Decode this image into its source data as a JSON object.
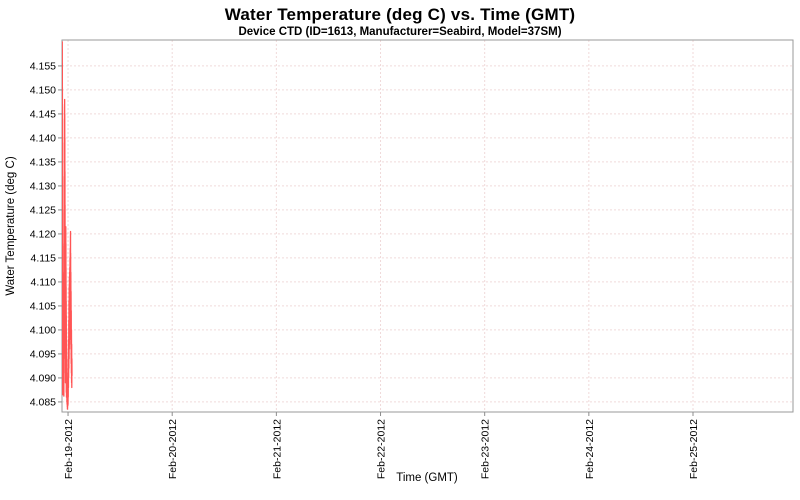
{
  "page": {
    "background": "#ffffff"
  },
  "chart_data": {
    "type": "line",
    "title": "Water Temperature (deg C) vs. Time (GMT)",
    "subtitle": "Device CTD (ID=1613, Manufacturer=Seabird, Model=37SM)",
    "xlabel": "Time (GMT)",
    "ylabel": "Water Temperature (deg C)",
    "x_tick_labels": [
      "Feb-19-2012",
      "Feb-20-2012",
      "Feb-21-2012",
      "Feb-22-2012",
      "Feb-23-2012",
      "Feb-24-2012",
      "Feb-25-2012"
    ],
    "x_tick_days": [
      0,
      1,
      2,
      3,
      4,
      5,
      6
    ],
    "x_range_days": [
      -0.058,
      6.96
    ],
    "y_ticks": [
      4.085,
      4.09,
      4.095,
      4.1,
      4.105,
      4.11,
      4.115,
      4.12,
      4.125,
      4.13,
      4.135,
      4.14,
      4.145,
      4.15,
      4.155
    ],
    "y_range": [
      4.0829,
      4.1604
    ],
    "grid": true,
    "legend": "none",
    "colors": {
      "series": "#ff5555",
      "grid": "#f0dada",
      "border": "#9a9a9a",
      "tick": "#8c8c8c",
      "text": "#000000"
    },
    "series": [
      {
        "color": "#ff5555",
        "points": [
          [
            -0.0556,
            4.091
          ],
          [
            -0.0554,
            4.16
          ],
          [
            -0.0552,
            4.095
          ],
          [
            -0.055,
            4.1585
          ],
          [
            -0.0548,
            4.1
          ],
          [
            -0.0546,
            4.1555
          ],
          [
            -0.0544,
            4.093
          ],
          [
            -0.0542,
            4.1505
          ],
          [
            -0.054,
            4.097
          ],
          [
            -0.0538,
            4.1465
          ],
          [
            -0.0536,
            4.089
          ],
          [
            -0.0534,
            4.14
          ],
          [
            -0.0532,
            4.094
          ],
          [
            -0.053,
            4.132
          ],
          [
            -0.0528,
            4.088
          ],
          [
            -0.0526,
            4.1245
          ],
          [
            -0.0524,
            4.092
          ],
          [
            -0.0522,
            4.1175
          ],
          [
            -0.052,
            4.087
          ],
          [
            -0.0518,
            4.1115
          ],
          [
            -0.0516,
            4.09
          ],
          [
            -0.0514,
            4.1065
          ],
          [
            -0.0511,
            4.0865
          ],
          [
            -0.0506,
            4.104
          ],
          [
            -0.0501,
            4.0885
          ],
          [
            -0.0496,
            4.107
          ],
          [
            -0.0491,
            4.0905
          ],
          [
            -0.0486,
            4.109
          ],
          [
            -0.0481,
            4.0875
          ],
          [
            -0.0476,
            4.105
          ],
          [
            -0.0471,
            4.0915
          ],
          [
            -0.0466,
            4.1095
          ],
          [
            -0.0461,
            4.0885
          ],
          [
            -0.0456,
            4.103
          ],
          [
            -0.0451,
            4.087
          ],
          [
            -0.0446,
            4.108
          ],
          [
            -0.0441,
            4.0895
          ],
          [
            -0.0436,
            4.105
          ],
          [
            -0.0431,
            4.0878
          ],
          [
            -0.0426,
            4.101
          ],
          [
            -0.0421,
            4.0905
          ],
          [
            -0.0416,
            4.107
          ],
          [
            -0.0411,
            4.0888
          ],
          [
            -0.0406,
            4.104
          ],
          [
            -0.0401,
            4.0862
          ],
          [
            -0.0396,
            4.112
          ],
          [
            -0.0391,
            4.095
          ],
          [
            -0.0386,
            4.118
          ],
          [
            -0.0381,
            4.099
          ],
          [
            -0.0376,
            4.125
          ],
          [
            -0.0371,
            4.103
          ],
          [
            -0.0366,
            4.132
          ],
          [
            -0.0361,
            4.107
          ],
          [
            -0.0356,
            4.139
          ],
          [
            -0.0351,
            4.11
          ],
          [
            -0.0346,
            4.144
          ],
          [
            -0.0341,
            4.113
          ],
          [
            -0.0336,
            4.147
          ],
          [
            -0.0331,
            4.115
          ],
          [
            -0.0326,
            4.148
          ],
          [
            -0.0321,
            4.112
          ],
          [
            -0.0316,
            4.145
          ],
          [
            -0.0311,
            4.108
          ],
          [
            -0.0306,
            4.14
          ],
          [
            -0.0301,
            4.104
          ],
          [
            -0.0296,
            4.133
          ],
          [
            -0.0291,
            4.1
          ],
          [
            -0.0286,
            4.126
          ],
          [
            -0.0281,
            4.097
          ],
          [
            -0.0276,
            4.119
          ],
          [
            -0.0271,
            4.094
          ],
          [
            -0.0266,
            4.113
          ],
          [
            -0.0261,
            4.091
          ],
          [
            -0.0256,
            4.108
          ],
          [
            -0.0251,
            4.089
          ],
          [
            -0.0246,
            4.112
          ],
          [
            -0.0241,
            4.093
          ],
          [
            -0.0236,
            4.116
          ],
          [
            -0.0231,
            4.096
          ],
          [
            -0.0226,
            4.119
          ],
          [
            -0.0221,
            4.098
          ],
          [
            -0.0216,
            4.1215
          ],
          [
            -0.0211,
            4.099
          ],
          [
            -0.0206,
            4.118
          ],
          [
            -0.0201,
            4.095
          ],
          [
            -0.0196,
            4.113
          ],
          [
            -0.0191,
            4.092
          ],
          [
            -0.0186,
            4.109
          ],
          [
            -0.0181,
            4.089
          ],
          [
            -0.0176,
            4.106
          ],
          [
            -0.0171,
            4.087
          ],
          [
            -0.0166,
            4.103
          ],
          [
            -0.0161,
            4.09
          ],
          [
            -0.0156,
            4.1
          ],
          [
            -0.0151,
            4.086
          ],
          [
            -0.0146,
            4.098
          ],
          [
            -0.0141,
            4.089
          ],
          [
            -0.0136,
            4.096
          ],
          [
            -0.0131,
            4.086
          ],
          [
            -0.0126,
            4.094
          ],
          [
            -0.0121,
            4.088
          ],
          [
            -0.0116,
            4.092
          ],
          [
            -0.0111,
            4.085
          ],
          [
            -0.0106,
            4.091
          ],
          [
            -0.0101,
            4.087
          ],
          [
            -0.0096,
            4.09
          ],
          [
            -0.0091,
            4.0845
          ],
          [
            -0.0086,
            4.089
          ],
          [
            -0.0081,
            4.086
          ],
          [
            -0.0076,
            4.088
          ],
          [
            -0.0071,
            4.084
          ],
          [
            -0.0066,
            4.087
          ],
          [
            -0.0061,
            4.0835
          ],
          [
            -0.0051,
            4.085
          ],
          [
            -0.0041,
            4.0838
          ],
          [
            -0.0031,
            4.086
          ],
          [
            -0.0021,
            4.0842
          ],
          [
            -0.0011,
            4.087
          ],
          [
            0.0,
            4.0845
          ],
          [
            0.001,
            4.09
          ],
          [
            0.002,
            4.086
          ],
          [
            0.003,
            4.094
          ],
          [
            0.004,
            4.088
          ],
          [
            0.005,
            4.098
          ],
          [
            0.006,
            4.09
          ],
          [
            0.007,
            4.102
          ],
          [
            0.008,
            4.092
          ],
          [
            0.009,
            4.106
          ],
          [
            0.01,
            4.094
          ],
          [
            0.011,
            4.109
          ],
          [
            0.012,
            4.096
          ],
          [
            0.013,
            4.111
          ],
          [
            0.014,
            4.097
          ],
          [
            0.015,
            4.112
          ],
          [
            0.016,
            4.098
          ],
          [
            0.017,
            4.113
          ],
          [
            0.018,
            4.099
          ],
          [
            0.019,
            4.115
          ],
          [
            0.02,
            4.1
          ],
          [
            0.021,
            4.117
          ],
          [
            0.022,
            4.101
          ],
          [
            0.023,
            4.119
          ],
          [
            0.024,
            4.1205
          ],
          [
            0.0245,
            4.103
          ],
          [
            0.025,
            4.116
          ],
          [
            0.026,
            4.099
          ],
          [
            0.027,
            4.112
          ],
          [
            0.028,
            4.096
          ],
          [
            0.029,
            4.108
          ],
          [
            0.03,
            4.093
          ],
          [
            0.031,
            4.104
          ],
          [
            0.032,
            4.091
          ],
          [
            0.033,
            4.1
          ],
          [
            0.034,
            4.089
          ],
          [
            0.035,
            4.097
          ],
          [
            0.036,
            4.088
          ],
          [
            0.037,
            4.094
          ],
          [
            0.038,
            4.0905
          ]
        ]
      }
    ]
  }
}
